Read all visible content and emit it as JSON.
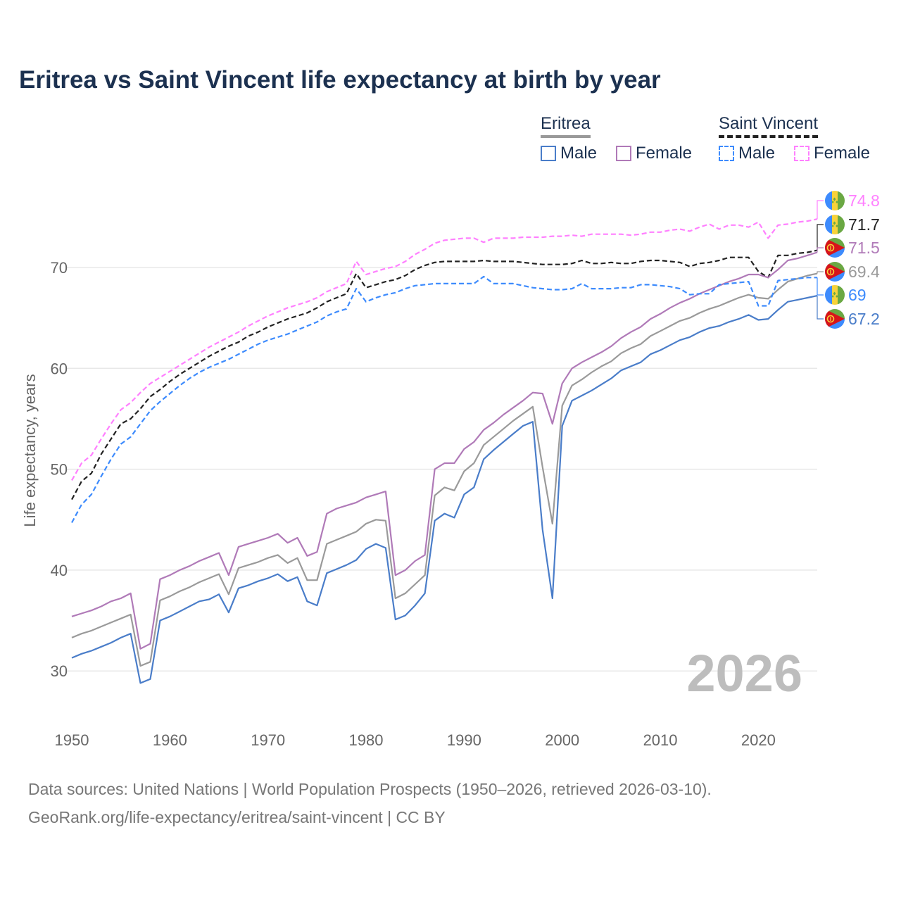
{
  "chart_data": {
    "type": "line",
    "title": "Eritrea vs Saint Vincent life expectancy at birth by year",
    "xlabel": "",
    "ylabel": "Life expectancy, years",
    "xlim": [
      1950,
      2026
    ],
    "ylim": [
      25,
      76
    ],
    "x_ticks": [
      "1950",
      "1960",
      "1970",
      "1980",
      "1990",
      "2000",
      "2010",
      "2020"
    ],
    "y_ticks": [
      "30",
      "40",
      "50",
      "60",
      "70"
    ],
    "grid": true,
    "watermark": "2026",
    "legend": {
      "placement": "top-right",
      "groups": [
        {
          "name": "Eritrea",
          "items": [
            "Male",
            "Female"
          ]
        },
        {
          "name": "Saint Vincent",
          "items": [
            "Male",
            "Female"
          ]
        }
      ]
    },
    "x_start": 1950,
    "series": [
      {
        "name": "Saint Vincent Female",
        "country": "Saint Vincent",
        "color": "#ff80ff",
        "dashed": true,
        "end_label": "74.8",
        "values": [
          48.9,
          50.6,
          51.4,
          53.0,
          54.5,
          55.9,
          56.6,
          57.6,
          58.5,
          59.1,
          59.7,
          60.3,
          60.9,
          61.5,
          62.1,
          62.6,
          63.1,
          63.6,
          64.2,
          64.7,
          65.2,
          65.6,
          66.0,
          66.3,
          66.6,
          67.0,
          67.6,
          68.0,
          68.4,
          70.6,
          69.3,
          69.6,
          69.9,
          70.1,
          70.6,
          71.3,
          71.8,
          72.4,
          72.7,
          72.8,
          72.9,
          72.9,
          72.5,
          72.9,
          72.9,
          72.9,
          73.0,
          73.0,
          73.0,
          73.1,
          73.1,
          73.2,
          73.1,
          73.3,
          73.3,
          73.3,
          73.3,
          73.2,
          73.3,
          73.5,
          73.5,
          73.7,
          73.8,
          73.6,
          74.0,
          74.3,
          73.8,
          74.2,
          74.2,
          74.0,
          74.5,
          72.9,
          74.2,
          74.3,
          74.5,
          74.6,
          74.8
        ]
      },
      {
        "name": "Saint Vincent Total",
        "country": "Saint Vincent",
        "color": "#222222",
        "dashed": true,
        "end_label": "71.7",
        "values": [
          47.0,
          48.8,
          49.6,
          51.5,
          53.0,
          54.5,
          55.0,
          56.0,
          57.2,
          57.9,
          58.7,
          59.4,
          60.0,
          60.6,
          61.2,
          61.7,
          62.2,
          62.6,
          63.2,
          63.6,
          64.1,
          64.5,
          64.9,
          65.2,
          65.5,
          66.0,
          66.6,
          67.0,
          67.4,
          69.4,
          68.0,
          68.3,
          68.6,
          68.8,
          69.2,
          69.8,
          70.2,
          70.5,
          70.6,
          70.6,
          70.6,
          70.6,
          70.7,
          70.6,
          70.6,
          70.6,
          70.5,
          70.4,
          70.3,
          70.3,
          70.3,
          70.4,
          70.7,
          70.4,
          70.4,
          70.5,
          70.4,
          70.4,
          70.6,
          70.7,
          70.7,
          70.6,
          70.5,
          70.1,
          70.4,
          70.5,
          70.7,
          71.0,
          71.0,
          71.0,
          69.6,
          69.0,
          71.2,
          71.2,
          71.4,
          71.5,
          71.7
        ]
      },
      {
        "name": "Eritrea Female",
        "country": "Eritrea",
        "color": "#b07ab8",
        "dashed": false,
        "end_label": "71.5",
        "values": [
          35.4,
          35.7,
          36.0,
          36.4,
          36.9,
          37.2,
          37.7,
          32.2,
          32.7,
          39.1,
          39.5,
          40.0,
          40.4,
          40.9,
          41.3,
          41.7,
          39.5,
          42.3,
          42.6,
          42.9,
          43.2,
          43.6,
          42.7,
          43.2,
          41.4,
          41.8,
          45.6,
          46.1,
          46.4,
          46.7,
          47.2,
          47.5,
          47.8,
          39.5,
          40.0,
          40.9,
          41.5,
          50.0,
          50.6,
          50.6,
          52.0,
          52.7,
          53.9,
          54.6,
          55.4,
          56.1,
          56.8,
          57.6,
          57.5,
          54.5,
          58.5,
          60.0,
          60.6,
          61.1,
          61.6,
          62.2,
          63.0,
          63.6,
          64.1,
          64.9,
          65.4,
          66.0,
          66.5,
          66.9,
          67.4,
          67.8,
          68.2,
          68.6,
          68.9,
          69.3,
          69.3,
          69.0,
          69.8,
          70.7,
          70.9,
          71.2,
          71.5
        ]
      },
      {
        "name": "Eritrea Total",
        "country": "Eritrea",
        "color": "#9a9a9a",
        "dashed": false,
        "end_label": "69.4",
        "values": [
          33.3,
          33.7,
          34.0,
          34.4,
          34.8,
          35.2,
          35.6,
          30.5,
          30.9,
          37.0,
          37.4,
          37.9,
          38.3,
          38.8,
          39.2,
          39.6,
          37.6,
          40.2,
          40.5,
          40.8,
          41.2,
          41.5,
          40.7,
          41.2,
          39.0,
          39.0,
          42.6,
          43.0,
          43.4,
          43.8,
          44.6,
          45.0,
          44.9,
          37.2,
          37.7,
          38.6,
          39.5,
          47.4,
          48.2,
          47.9,
          49.8,
          50.6,
          52.4,
          53.2,
          54.0,
          54.8,
          55.5,
          56.2,
          50.2,
          44.6,
          56.3,
          58.3,
          58.9,
          59.6,
          60.2,
          60.7,
          61.5,
          62.0,
          62.4,
          63.2,
          63.7,
          64.2,
          64.7,
          65.0,
          65.5,
          65.9,
          66.2,
          66.6,
          67.0,
          67.3,
          67.0,
          66.9,
          67.8,
          68.6,
          68.9,
          69.2,
          69.4
        ]
      },
      {
        "name": "Saint Vincent Male",
        "country": "Saint Vincent",
        "color": "#3d8bfd",
        "dashed": true,
        "end_label": "69",
        "values": [
          44.7,
          46.5,
          47.5,
          49.3,
          51.0,
          52.5,
          53.2,
          54.5,
          55.8,
          56.7,
          57.5,
          58.3,
          59.0,
          59.6,
          60.1,
          60.5,
          60.9,
          61.4,
          61.9,
          62.4,
          62.8,
          63.1,
          63.4,
          63.8,
          64.2,
          64.6,
          65.2,
          65.6,
          65.9,
          67.9,
          66.6,
          67.0,
          67.3,
          67.5,
          67.9,
          68.2,
          68.3,
          68.4,
          68.4,
          68.4,
          68.4,
          68.4,
          69.1,
          68.4,
          68.4,
          68.4,
          68.2,
          68.0,
          67.9,
          67.8,
          67.8,
          67.9,
          68.4,
          67.9,
          67.9,
          67.9,
          68.0,
          68.0,
          68.3,
          68.3,
          68.2,
          68.1,
          67.9,
          67.3,
          67.4,
          67.4,
          68.3,
          68.4,
          68.5,
          68.6,
          66.2,
          66.2,
          68.7,
          68.8,
          68.9,
          69.0,
          69.0
        ]
      },
      {
        "name": "Eritrea Male",
        "country": "Eritrea",
        "color": "#4a7dc9",
        "dashed": false,
        "end_label": "67.2",
        "values": [
          31.3,
          31.7,
          32.0,
          32.4,
          32.8,
          33.3,
          33.7,
          28.8,
          29.2,
          35.0,
          35.4,
          35.9,
          36.4,
          36.9,
          37.1,
          37.6,
          35.8,
          38.2,
          38.5,
          38.9,
          39.2,
          39.6,
          38.9,
          39.3,
          36.9,
          36.5,
          39.7,
          40.1,
          40.5,
          41.0,
          42.1,
          42.6,
          42.2,
          35.1,
          35.5,
          36.5,
          37.7,
          44.9,
          45.6,
          45.2,
          47.5,
          48.2,
          51.0,
          51.9,
          52.7,
          53.5,
          54.3,
          54.7,
          44.0,
          37.2,
          54.3,
          56.8,
          57.3,
          57.8,
          58.4,
          59.0,
          59.8,
          60.2,
          60.6,
          61.4,
          61.8,
          62.3,
          62.8,
          63.1,
          63.6,
          64.0,
          64.2,
          64.6,
          64.9,
          65.3,
          64.8,
          64.9,
          65.8,
          66.6,
          66.8,
          67.0,
          67.2
        ]
      }
    ]
  },
  "legend": {
    "eritrea": "Eritrea",
    "saint_vincent": "Saint Vincent",
    "male": "Male",
    "female": "Female"
  },
  "footer": {
    "line1": "Data sources: United Nations | World Population Prospects (1950–2026, retrieved 2026-03-10).",
    "line2": "GeoRank.org/life-expectancy/eritrea/saint-vincent | CC BY"
  }
}
